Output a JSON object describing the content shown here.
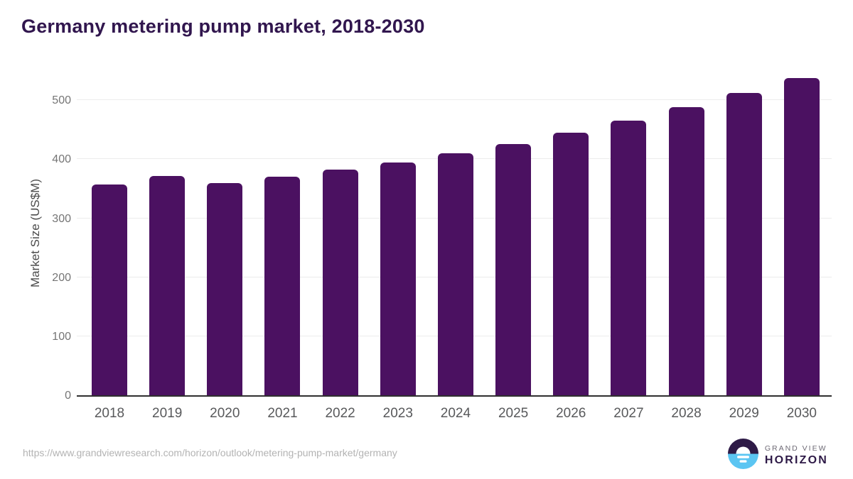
{
  "title": "Germany metering pump market, 2018-2030",
  "footer": {
    "source_url": "https://www.grandviewresearch.com/horizon/outlook/metering-pump-market/germany",
    "logo": {
      "line1": "GRAND VIEW",
      "line2": "HORIZON"
    }
  },
  "colors": {
    "bar": "#4B1161",
    "title_text": "#31164E",
    "axis_line": "#2F2F2F",
    "gridline": "#ECECEC",
    "y_tick_text": "#757575",
    "x_tick_text": "#58595B",
    "url_text": "#B3B3B3",
    "logo_blue": "#5BC5F2",
    "logo_dark_purple": "#2E1A47"
  },
  "chart_data": {
    "type": "bar",
    "title": "Germany metering pump market, 2018-2030",
    "categories": [
      "2018",
      "2019",
      "2020",
      "2021",
      "2022",
      "2023",
      "2024",
      "2025",
      "2026",
      "2027",
      "2028",
      "2029",
      "2030"
    ],
    "values": [
      357,
      372,
      360,
      371,
      383,
      395,
      410,
      426,
      445,
      465,
      488,
      512,
      538
    ],
    "xlabel": "",
    "ylabel": "Market Size (US$M)",
    "ylim": [
      0,
      550
    ],
    "yticks": [
      0,
      100,
      200,
      300,
      400,
      500
    ],
    "grid": "horizontal",
    "legend": "none",
    "bar_color": "#4B1161"
  }
}
